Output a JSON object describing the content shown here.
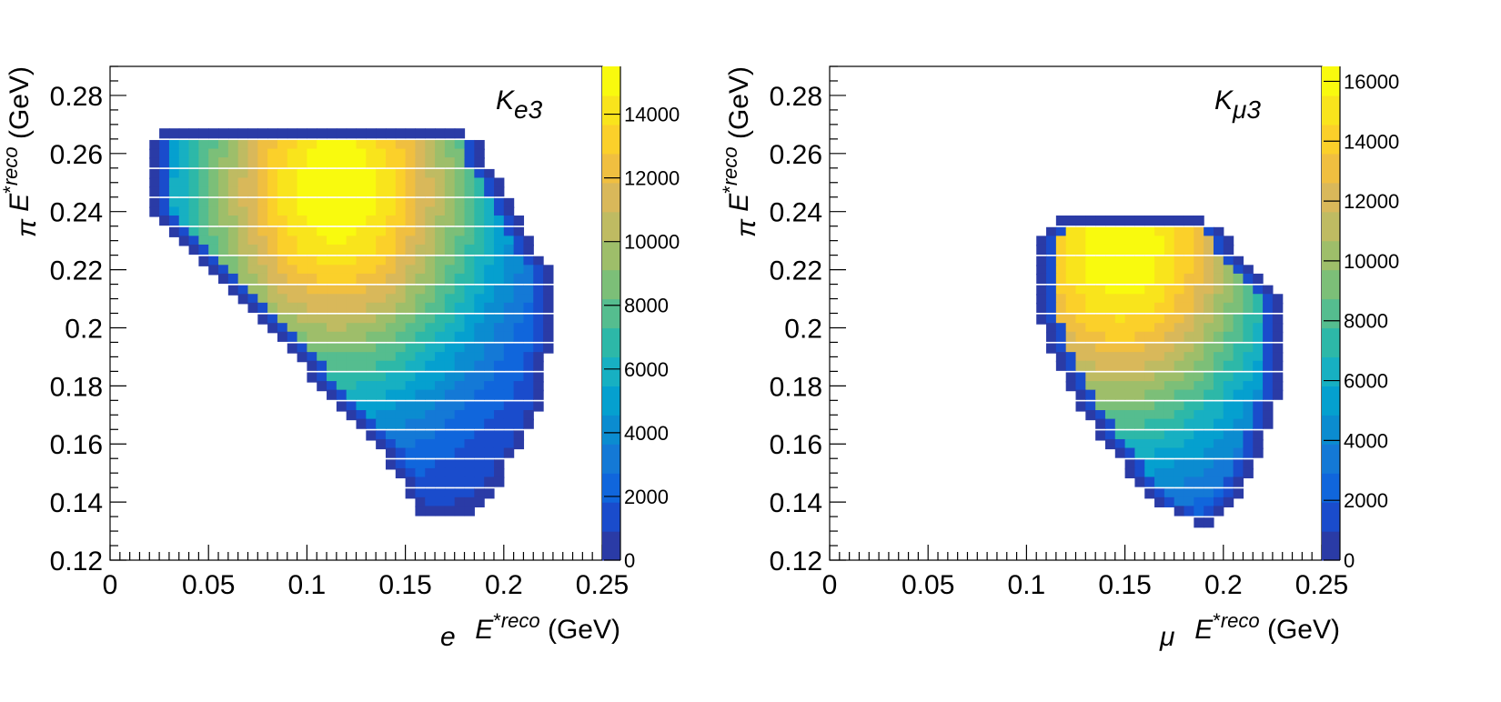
{
  "chart_data": [
    {
      "type": "heatmap",
      "title": "K_e3",
      "title_main": "K",
      "title_sub": "e3",
      "xlabel": {
        "symbol": "E",
        "sup": "*",
        "sub": "e",
        "supword": "reco",
        "unit": "(GeV)"
      },
      "ylabel": {
        "symbol": "E",
        "sup": "*",
        "sub": "π",
        "supword": "reco",
        "unit": "(GeV)"
      },
      "xlim": [
        0,
        0.25
      ],
      "ylim": [
        0.12,
        0.29
      ],
      "x_ticks": [
        "0",
        "0.05",
        "0.1",
        "0.15",
        "0.2",
        "0.25"
      ],
      "y_ticks": [
        "0.12",
        "0.14",
        "0.16",
        "0.18",
        "0.2",
        "0.22",
        "0.24",
        "0.26",
        "0.28"
      ],
      "colorbar": {
        "min": 0,
        "max": 15500,
        "ticks": [
          "0",
          "2000",
          "4000",
          "6000",
          "8000",
          "10000",
          "12000",
          "14000"
        ]
      },
      "bin_width_x": 0.005,
      "bin_width_y": 0.0033,
      "peak": {
        "x": 0.115,
        "y": 0.247,
        "value": 15500
      },
      "shape_description_rows": [
        {
          "y": 0.267,
          "xmin": 0.025,
          "xmax": 0.18
        },
        {
          "y": 0.263,
          "xmin": 0.02,
          "xmax": 0.19
        },
        {
          "y": 0.26,
          "xmin": 0.02,
          "xmax": 0.19
        },
        {
          "y": 0.257,
          "xmin": 0.02,
          "xmax": 0.19
        },
        {
          "y": 0.253,
          "xmin": 0.02,
          "xmax": 0.195
        },
        {
          "y": 0.25,
          "xmin": 0.02,
          "xmax": 0.2
        },
        {
          "y": 0.247,
          "xmin": 0.02,
          "xmax": 0.2
        },
        {
          "y": 0.243,
          "xmin": 0.02,
          "xmax": 0.205
        },
        {
          "y": 0.24,
          "xmin": 0.02,
          "xmax": 0.205
        },
        {
          "y": 0.237,
          "xmin": 0.025,
          "xmax": 0.21
        },
        {
          "y": 0.233,
          "xmin": 0.03,
          "xmax": 0.21
        },
        {
          "y": 0.23,
          "xmin": 0.035,
          "xmax": 0.215
        },
        {
          "y": 0.227,
          "xmin": 0.04,
          "xmax": 0.215
        },
        {
          "y": 0.223,
          "xmin": 0.045,
          "xmax": 0.22
        },
        {
          "y": 0.22,
          "xmin": 0.05,
          "xmax": 0.225
        },
        {
          "y": 0.217,
          "xmin": 0.055,
          "xmax": 0.225
        },
        {
          "y": 0.213,
          "xmin": 0.06,
          "xmax": 0.225
        },
        {
          "y": 0.21,
          "xmin": 0.065,
          "xmax": 0.225
        },
        {
          "y": 0.207,
          "xmin": 0.07,
          "xmax": 0.225
        },
        {
          "y": 0.203,
          "xmin": 0.075,
          "xmax": 0.225
        },
        {
          "y": 0.2,
          "xmin": 0.08,
          "xmax": 0.225
        },
        {
          "y": 0.197,
          "xmin": 0.085,
          "xmax": 0.225
        },
        {
          "y": 0.193,
          "xmin": 0.09,
          "xmax": 0.225
        },
        {
          "y": 0.19,
          "xmin": 0.095,
          "xmax": 0.22
        },
        {
          "y": 0.187,
          "xmin": 0.1,
          "xmax": 0.22
        },
        {
          "y": 0.183,
          "xmin": 0.1,
          "xmax": 0.22
        },
        {
          "y": 0.18,
          "xmin": 0.105,
          "xmax": 0.22
        },
        {
          "y": 0.177,
          "xmin": 0.11,
          "xmax": 0.22
        },
        {
          "y": 0.173,
          "xmin": 0.115,
          "xmax": 0.22
        },
        {
          "y": 0.17,
          "xmin": 0.12,
          "xmax": 0.215
        },
        {
          "y": 0.167,
          "xmin": 0.125,
          "xmax": 0.215
        },
        {
          "y": 0.163,
          "xmin": 0.13,
          "xmax": 0.21
        },
        {
          "y": 0.16,
          "xmin": 0.135,
          "xmax": 0.21
        },
        {
          "y": 0.157,
          "xmin": 0.14,
          "xmax": 0.205
        },
        {
          "y": 0.153,
          "xmin": 0.14,
          "xmax": 0.2
        },
        {
          "y": 0.15,
          "xmin": 0.145,
          "xmax": 0.2
        },
        {
          "y": 0.147,
          "xmin": 0.15,
          "xmax": 0.2
        },
        {
          "y": 0.143,
          "xmin": 0.15,
          "xmax": 0.195
        },
        {
          "y": 0.14,
          "xmin": 0.155,
          "xmax": 0.19
        },
        {
          "y": 0.137,
          "xmin": 0.155,
          "xmax": 0.185
        }
      ]
    },
    {
      "type": "heatmap",
      "title": "K_μ3",
      "title_main": "K",
      "title_sub": "μ3",
      "xlabel": {
        "symbol": "E",
        "sup": "*",
        "sub": "μ",
        "supword": "reco",
        "unit": "(GeV)"
      },
      "ylabel": {
        "symbol": "E",
        "sup": "*",
        "sub": "π",
        "supword": "reco",
        "unit": "(GeV)"
      },
      "xlim": [
        0,
        0.25
      ],
      "ylim": [
        0.12,
        0.29
      ],
      "x_ticks": [
        "0",
        "0.05",
        "0.1",
        "0.15",
        "0.2",
        "0.25"
      ],
      "y_ticks": [
        "0.12",
        "0.14",
        "0.16",
        "0.18",
        "0.2",
        "0.22",
        "0.24",
        "0.26",
        "0.28"
      ],
      "colorbar": {
        "min": 0,
        "max": 16500,
        "ticks": [
          "0",
          "2000",
          "4000",
          "6000",
          "8000",
          "10000",
          "12000",
          "14000",
          "16000"
        ]
      },
      "bin_width_x": 0.005,
      "bin_width_y": 0.0033,
      "peak": {
        "x": 0.148,
        "y": 0.228,
        "value": 16500
      },
      "shape_description_rows": [
        {
          "y": 0.237,
          "xmin": 0.115,
          "xmax": 0.19
        },
        {
          "y": 0.233,
          "xmin": 0.11,
          "xmax": 0.2
        },
        {
          "y": 0.23,
          "xmin": 0.105,
          "xmax": 0.205
        },
        {
          "y": 0.227,
          "xmin": 0.105,
          "xmax": 0.205
        },
        {
          "y": 0.223,
          "xmin": 0.105,
          "xmax": 0.21
        },
        {
          "y": 0.22,
          "xmin": 0.105,
          "xmax": 0.215
        },
        {
          "y": 0.217,
          "xmin": 0.105,
          "xmax": 0.22
        },
        {
          "y": 0.213,
          "xmin": 0.105,
          "xmax": 0.225
        },
        {
          "y": 0.21,
          "xmin": 0.105,
          "xmax": 0.23
        },
        {
          "y": 0.207,
          "xmin": 0.105,
          "xmax": 0.23
        },
        {
          "y": 0.203,
          "xmin": 0.105,
          "xmax": 0.23
        },
        {
          "y": 0.2,
          "xmin": 0.11,
          "xmax": 0.23
        },
        {
          "y": 0.197,
          "xmin": 0.11,
          "xmax": 0.23
        },
        {
          "y": 0.193,
          "xmin": 0.11,
          "xmax": 0.23
        },
        {
          "y": 0.19,
          "xmin": 0.115,
          "xmax": 0.23
        },
        {
          "y": 0.187,
          "xmin": 0.115,
          "xmax": 0.23
        },
        {
          "y": 0.183,
          "xmin": 0.12,
          "xmax": 0.23
        },
        {
          "y": 0.18,
          "xmin": 0.12,
          "xmax": 0.23
        },
        {
          "y": 0.177,
          "xmin": 0.125,
          "xmax": 0.23
        },
        {
          "y": 0.173,
          "xmin": 0.125,
          "xmax": 0.225
        },
        {
          "y": 0.17,
          "xmin": 0.13,
          "xmax": 0.225
        },
        {
          "y": 0.167,
          "xmin": 0.135,
          "xmax": 0.225
        },
        {
          "y": 0.163,
          "xmin": 0.135,
          "xmax": 0.22
        },
        {
          "y": 0.16,
          "xmin": 0.14,
          "xmax": 0.22
        },
        {
          "y": 0.157,
          "xmin": 0.145,
          "xmax": 0.22
        },
        {
          "y": 0.153,
          "xmin": 0.15,
          "xmax": 0.215
        },
        {
          "y": 0.15,
          "xmin": 0.15,
          "xmax": 0.215
        },
        {
          "y": 0.147,
          "xmin": 0.155,
          "xmax": 0.21
        },
        {
          "y": 0.143,
          "xmin": 0.16,
          "xmax": 0.21
        },
        {
          "y": 0.14,
          "xmin": 0.165,
          "xmax": 0.205
        },
        {
          "y": 0.137,
          "xmin": 0.175,
          "xmax": 0.2
        },
        {
          "y": 0.133,
          "xmin": 0.185,
          "xmax": 0.195
        }
      ]
    }
  ],
  "palette": [
    "#2a3ba6",
    "#1a4ccc",
    "#1066dc",
    "#1479d6",
    "#0b8cd0",
    "#05a0cf",
    "#17b0c2",
    "#2db8a8",
    "#55bd8f",
    "#7cbf78",
    "#9ebe6a",
    "#bfbb62",
    "#d9b85a",
    "#f0bf40",
    "#fbd02a",
    "#f9e41c",
    "#f9fa0e"
  ]
}
